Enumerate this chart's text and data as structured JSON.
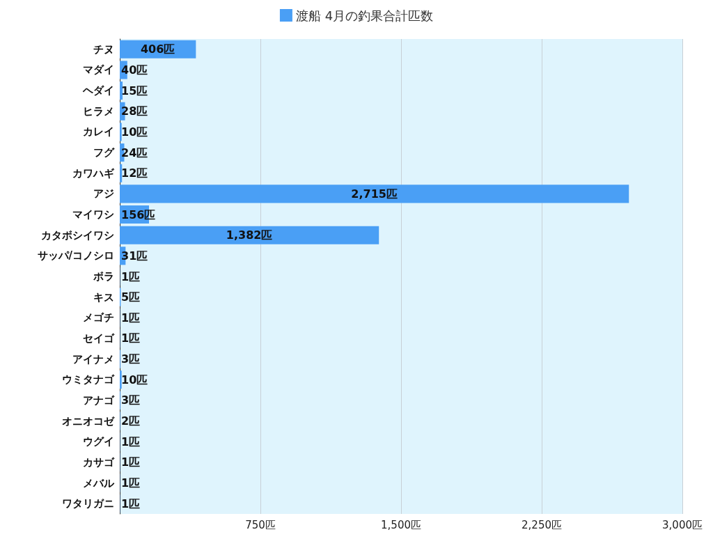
{
  "chart_data": {
    "type": "bar",
    "orientation": "horizontal",
    "categories": [
      "チヌ",
      "マダイ",
      "ヘダイ",
      "ヒラメ",
      "カレイ",
      "フグ",
      "カワハギ",
      "アジ",
      "マイワシ",
      "カタボシイワシ",
      "サッパ/コノシロ",
      "ボラ",
      "キス",
      "メゴチ",
      "セイゴ",
      "アイナメ",
      "ウミタナゴ",
      "アナゴ",
      "オニオコゼ",
      "ウグイ",
      "カサゴ",
      "メバル",
      "ワタリガニ"
    ],
    "series": [
      {
        "name": "渡船 4月の釣果合計匹数",
        "color": "#4a9ff5",
        "values": [
          406,
          40,
          15,
          28,
          10,
          24,
          12,
          2715,
          156,
          1382,
          31,
          1,
          5,
          1,
          1,
          3,
          10,
          3,
          2,
          1,
          1,
          1,
          1
        ],
        "value_labels": [
          "406匹",
          "40匹",
          "15匹",
          "28匹",
          "10匹",
          "24匹",
          "12匹",
          "2,715匹",
          "156匹",
          "1,382匹",
          "31匹",
          "1匹",
          "5匹",
          "1匹",
          "1匹",
          "3匹",
          "10匹",
          "3匹",
          "2匹",
          "1匹",
          "1匹",
          "1匹",
          "1匹"
        ]
      }
    ],
    "xlim": [
      0,
      3000
    ],
    "xticks": [
      {
        "value": 0,
        "label": null
      },
      {
        "value": 750,
        "label": "750匹"
      },
      {
        "value": 1500,
        "label": "1,500匹"
      },
      {
        "value": 2250,
        "label": "2,250匹"
      },
      {
        "value": 3000,
        "label": "3,000匹"
      }
    ],
    "grid": "x",
    "legend": "top"
  }
}
